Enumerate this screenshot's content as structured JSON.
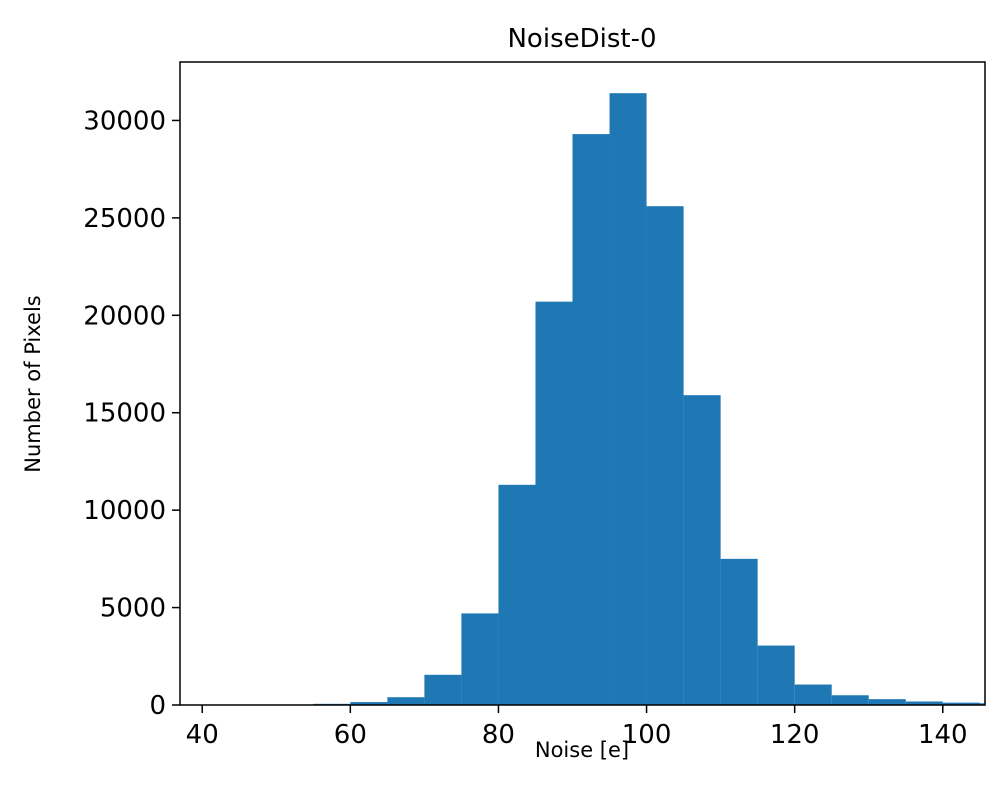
{
  "chart_data": {
    "type": "bar",
    "subtype": "histogram",
    "title": "NoiseDist-0",
    "xlabel": "Noise [e]",
    "ylabel": "Number of Pixels",
    "bin_edges": [
      55,
      60,
      65,
      70,
      75,
      80,
      85,
      90,
      95,
      100,
      105,
      110,
      115,
      120,
      125,
      130,
      135,
      140,
      145,
      150
    ],
    "counts": [
      60,
      150,
      400,
      1550,
      4700,
      11300,
      20700,
      29300,
      31400,
      25600,
      15900,
      7500,
      3050,
      1050,
      500,
      300,
      180,
      120,
      90
    ],
    "xlim": [
      37,
      145.7
    ],
    "ylim": [
      0,
      33000
    ],
    "xticks": [
      40,
      60,
      80,
      100,
      120,
      140
    ],
    "yticks": [
      0,
      5000,
      10000,
      15000,
      20000,
      25000,
      30000
    ],
    "bar_color": "#1f77b4",
    "axis_color": "#000000",
    "background": "#ffffff",
    "grid": false,
    "legend": null
  }
}
